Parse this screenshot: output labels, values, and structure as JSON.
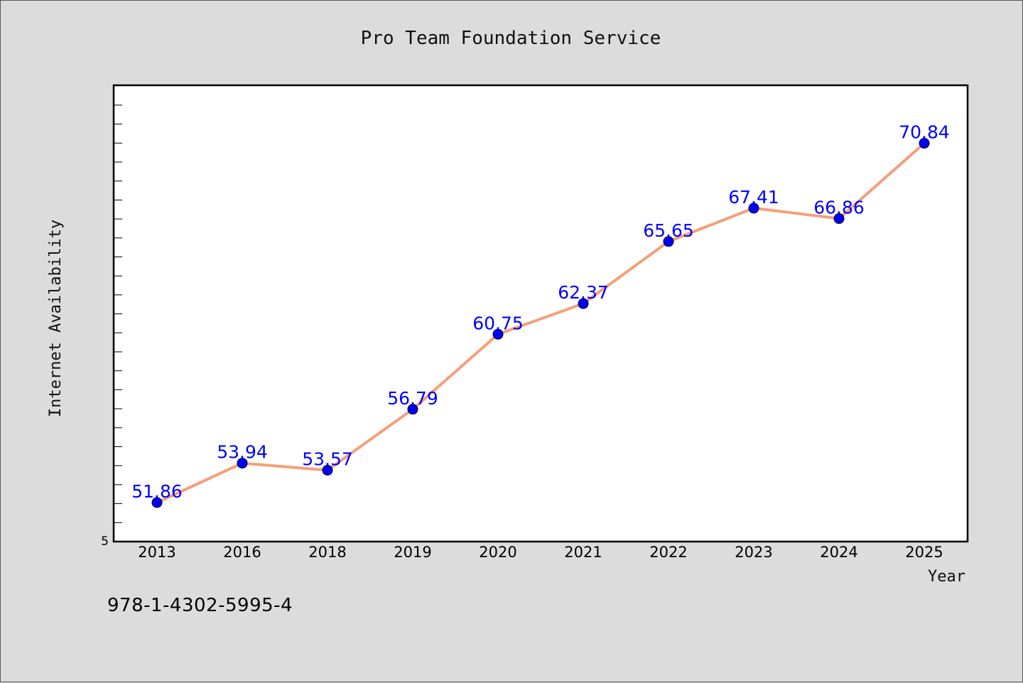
{
  "chart_data": {
    "type": "line",
    "title": "Pro Team Foundation Service",
    "xlabel": "Year",
    "ylabel": "Internet Availability",
    "categories": [
      "2013",
      "2016",
      "2018",
      "2019",
      "2020",
      "2021",
      "2022",
      "2023",
      "2024",
      "2025"
    ],
    "series": [
      {
        "values": [
          51.86,
          53.94,
          53.57,
          56.79,
          60.75,
          62.37,
          65.65,
          67.41,
          66.86,
          70.84
        ]
      }
    ],
    "data_labels": [
      "51.86",
      "53.94",
      "53.57",
      "56.79",
      "60.75",
      "62.37",
      "65.65",
      "67.41",
      "66.86",
      "70.84"
    ],
    "y_tick_label": "5",
    "ylim": [
      49.8,
      73.9
    ],
    "grid": false,
    "legend": "none",
    "colors": {
      "line": "#f4a07a",
      "marker": "#0000ee",
      "label": "#0000ff",
      "background": "#dcdcdc",
      "plot_background": "#ffffff"
    }
  },
  "footer": {
    "code": "978-1-4302-5995-4"
  }
}
